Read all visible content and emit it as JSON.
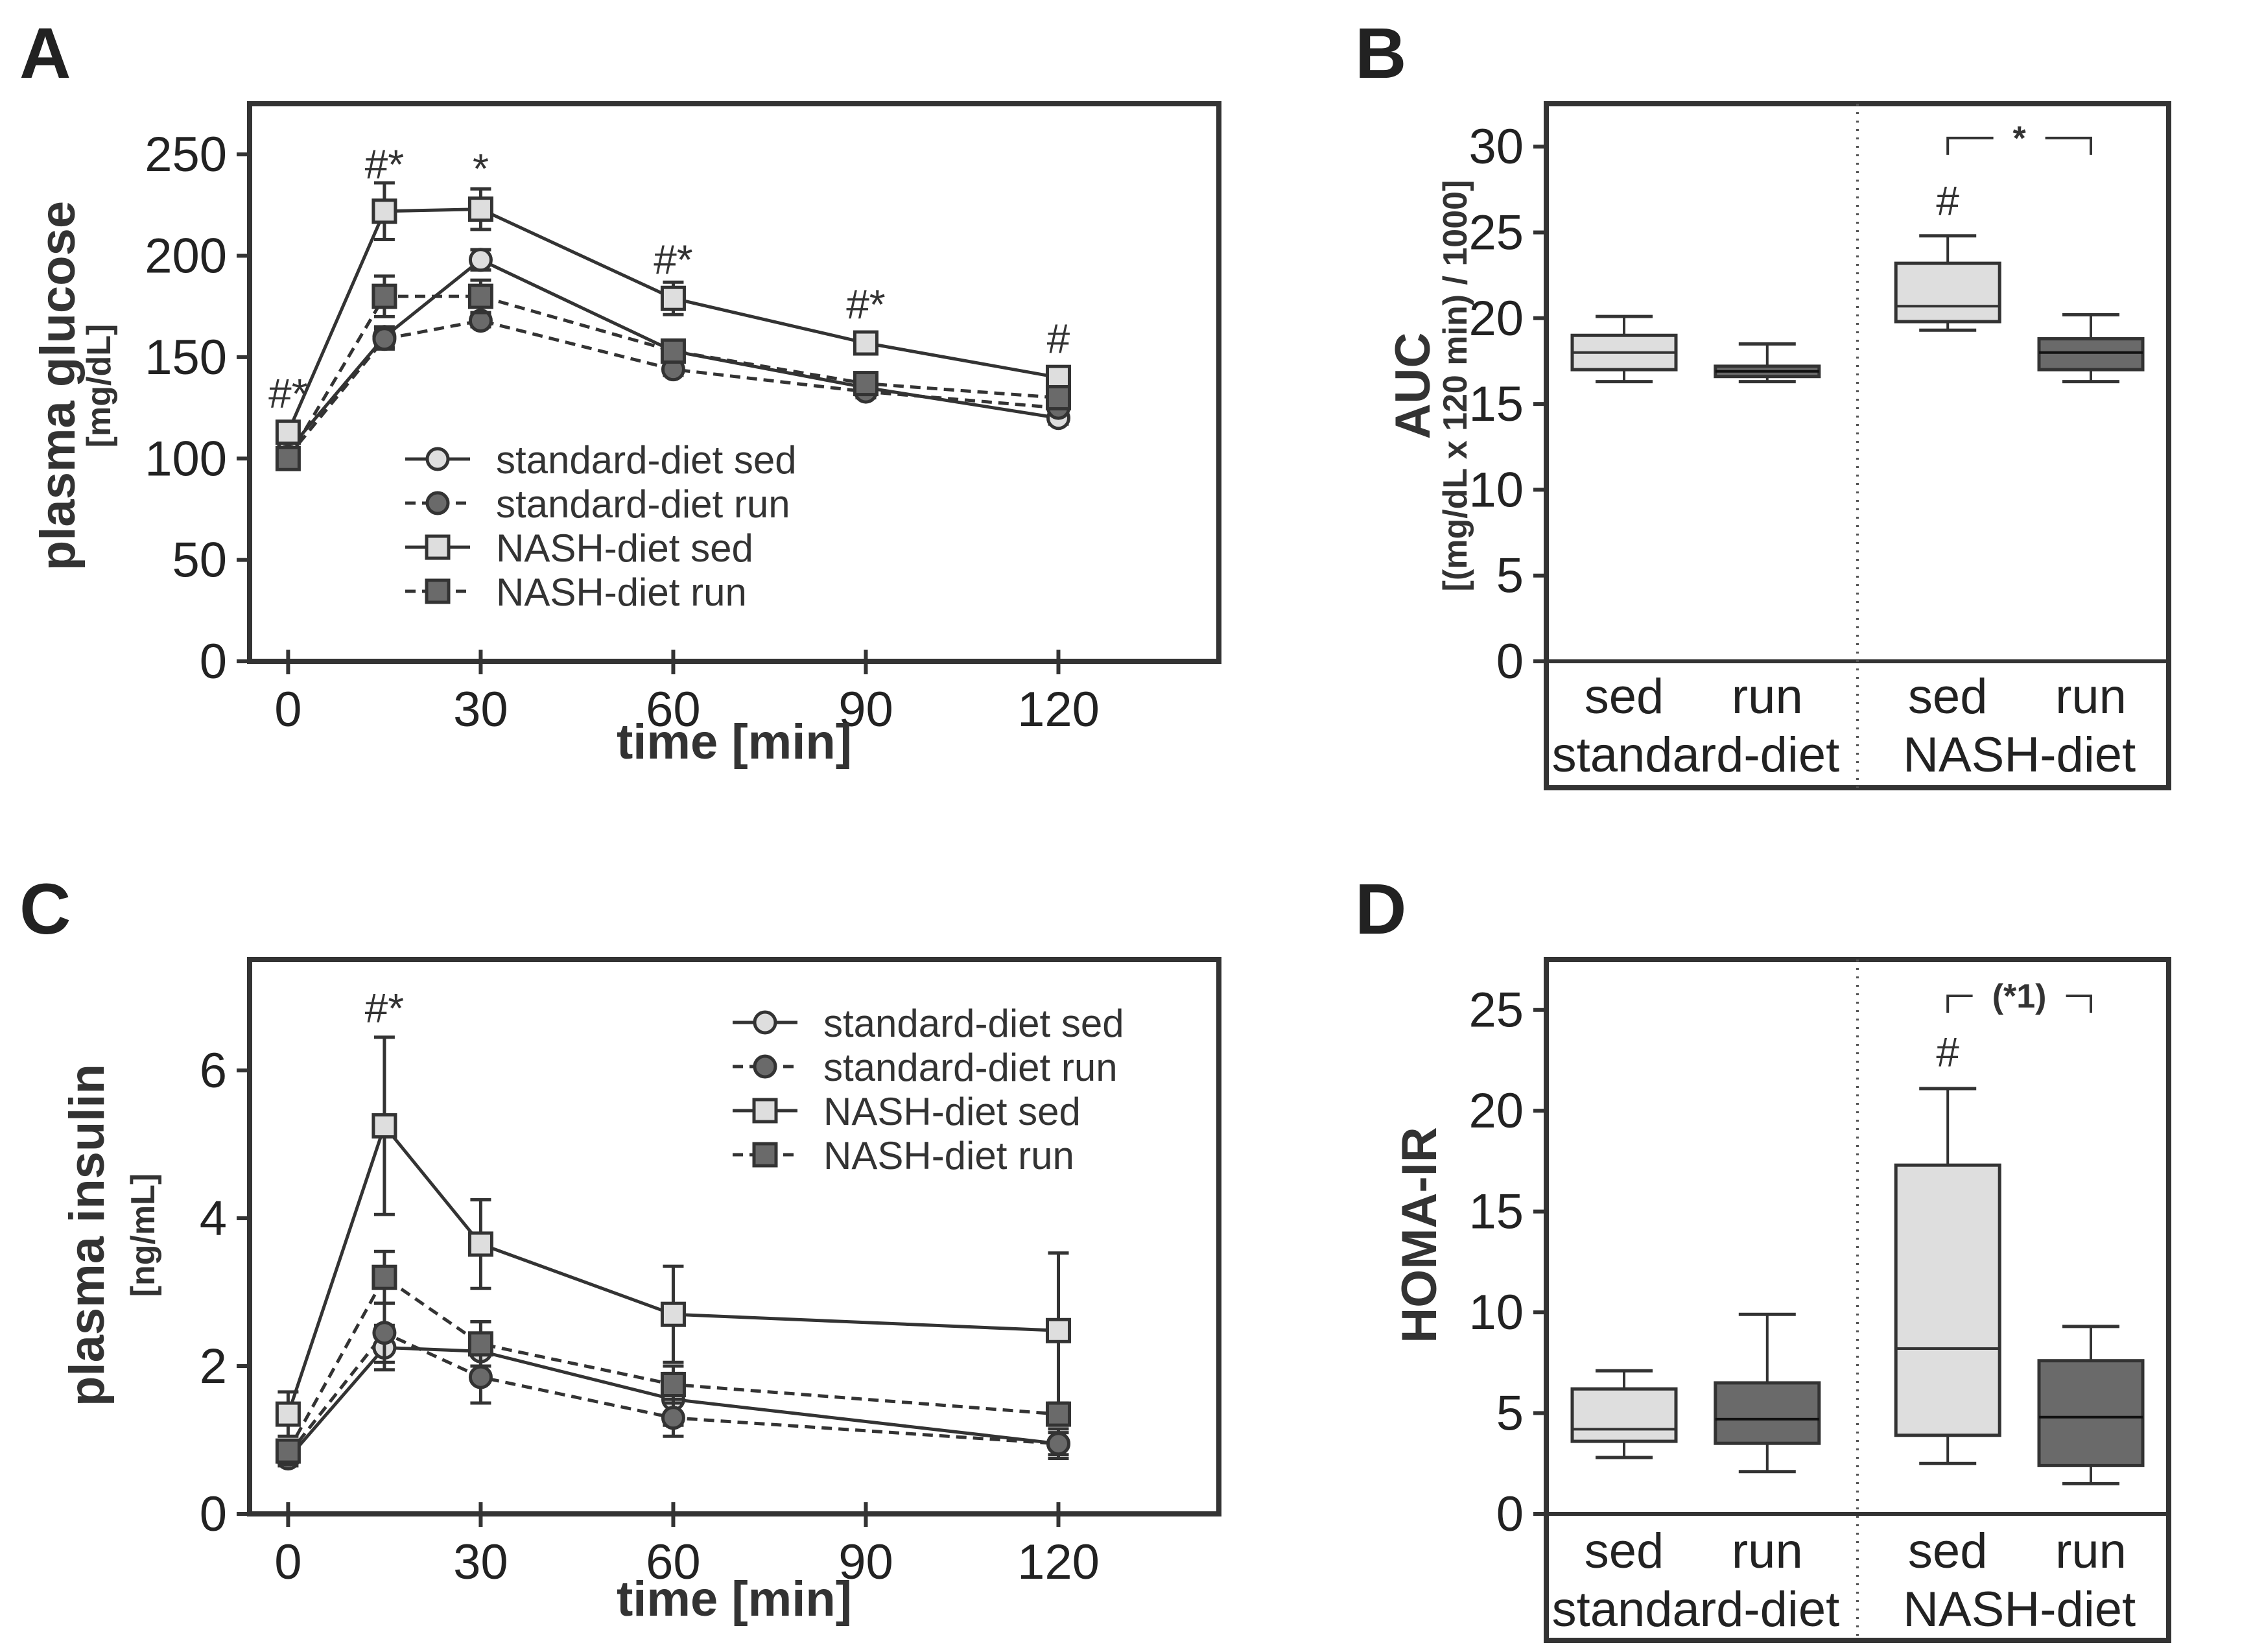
{
  "chart_data": [
    {
      "panel": "A",
      "type": "line",
      "xlabel": "time [min]",
      "ylabel": "plasma glucose",
      "yunit": "[mg/dL]",
      "xlim": [
        -6,
        145
      ],
      "ylim": [
        0,
        275
      ],
      "xticks": [
        0,
        30,
        60,
        90,
        120
      ],
      "yticks": [
        0,
        50,
        100,
        150,
        200,
        250
      ],
      "series": [
        {
          "name": "standard-diet sed",
          "style": "solid",
          "marker": "circle",
          "fill": "#dedede",
          "x": [
            0,
            15,
            30,
            60,
            90,
            120
          ],
          "y": [
            104,
            160,
            198,
            153,
            135,
            120
          ],
          "err": [
            3,
            5,
            5,
            4,
            3,
            3
          ]
        },
        {
          "name": "standard-diet run",
          "style": "dashed",
          "marker": "circle",
          "fill": "#6a6a6a",
          "x": [
            0,
            15,
            30,
            60,
            90,
            120
          ],
          "y": [
            101,
            159,
            168,
            144,
            133,
            125
          ],
          "err": [
            3,
            5,
            3,
            3,
            3,
            3
          ]
        },
        {
          "name": "NASH-diet sed",
          "style": "solid",
          "marker": "square",
          "fill": "#dedede",
          "x": [
            0,
            15,
            30,
            60,
            90,
            120
          ],
          "y": [
            113,
            222,
            223,
            179,
            157,
            140
          ],
          "err": [
            4,
            14,
            10,
            8,
            4,
            4
          ]
        },
        {
          "name": "NASH-diet run",
          "style": "dashed",
          "marker": "square",
          "fill": "#6a6a6a",
          "x": [
            0,
            15,
            30,
            60,
            90,
            120
          ],
          "y": [
            100,
            180,
            180,
            153,
            137,
            130
          ],
          "err": [
            3,
            10,
            8,
            4,
            3,
            3
          ]
        }
      ],
      "annotations": [
        {
          "x": 0,
          "y": 125,
          "text": "#*"
        },
        {
          "x": 15,
          "y": 238,
          "text": "#*"
        },
        {
          "x": 30,
          "y": 236,
          "text": "*"
        },
        {
          "x": 60,
          "y": 191,
          "text": "#*"
        },
        {
          "x": 90,
          "y": 169,
          "text": "#*"
        },
        {
          "x": 120,
          "y": 152,
          "text": "#"
        }
      ],
      "legend": "center"
    },
    {
      "panel": "B",
      "type": "box",
      "ylabel": "AUC",
      "yunit": "[(mg/dL x 120 min) / 1000]",
      "ylim": [
        0,
        32.5
      ],
      "yticks": [
        0,
        5,
        10,
        15,
        20,
        25,
        30
      ],
      "groups": [
        {
          "group": "standard-diet",
          "label": "sed",
          "fill": "#dedede",
          "whisker_low": 16.3,
          "q1": 17.0,
          "median": 18.0,
          "q3": 19.0,
          "whisker_high": 20.1
        },
        {
          "group": "standard-diet",
          "label": "run",
          "fill": "#6a6a6a",
          "whisker_low": 16.3,
          "q1": 16.6,
          "median": 16.9,
          "q3": 17.2,
          "whisker_high": 18.5
        },
        {
          "group": "NASH-diet",
          "label": "sed",
          "fill": "#dedede",
          "whisker_low": 19.3,
          "q1": 19.8,
          "median": 20.7,
          "q3": 23.2,
          "whisker_high": 24.8
        },
        {
          "group": "NASH-diet",
          "label": "run",
          "fill": "#6a6a6a",
          "whisker_low": 16.3,
          "q1": 17.0,
          "median": 18.0,
          "q3": 18.8,
          "whisker_high": 20.2
        }
      ],
      "group_labels": [
        "standard-diet",
        "NASH-diet"
      ],
      "annotations": [
        {
          "on": 2,
          "y": 26,
          "text": "#"
        }
      ],
      "bracket": {
        "from": 2,
        "to": 3,
        "y": 30.5,
        "text": "*"
      }
    },
    {
      "panel": "C",
      "type": "line",
      "xlabel": "time [min]",
      "ylabel": "plasma insulin",
      "yunit": "[ng/mL]",
      "xlim": [
        -6,
        145
      ],
      "ylim": [
        0,
        7.5
      ],
      "xticks": [
        0,
        30,
        60,
        90,
        120
      ],
      "yticks": [
        0,
        2,
        4,
        6
      ],
      "series": [
        {
          "name": "standard-diet sed",
          "style": "solid",
          "marker": "circle",
          "fill": "#dedede",
          "x": [
            0,
            15,
            30,
            60,
            120
          ],
          "y": [
            0.75,
            2.25,
            2.2,
            1.55,
            0.95
          ],
          "err": [
            0.1,
            0.3,
            0.4,
            0.35,
            0.2
          ]
        },
        {
          "name": "standard-diet run",
          "style": "dashed",
          "marker": "circle",
          "fill": "#6a6a6a",
          "x": [
            0,
            15,
            30,
            60,
            120
          ],
          "y": [
            0.8,
            2.45,
            1.85,
            1.3,
            0.95
          ],
          "err": [
            0.1,
            0.4,
            0.35,
            0.25,
            0.15
          ]
        },
        {
          "name": "NASH-diet sed",
          "style": "solid",
          "marker": "square",
          "fill": "#dedede",
          "x": [
            0,
            15,
            30,
            60,
            120
          ],
          "y": [
            1.35,
            5.25,
            3.65,
            2.7,
            2.48
          ],
          "err": [
            0.3,
            1.2,
            0.6,
            0.65,
            1.05
          ]
        },
        {
          "name": "NASH-diet run",
          "style": "dashed",
          "marker": "square",
          "fill": "#6a6a6a",
          "x": [
            0,
            15,
            30,
            60,
            120
          ],
          "y": [
            0.85,
            3.2,
            2.3,
            1.75,
            1.35
          ],
          "err": [
            0.1,
            0.35,
            0.3,
            0.25,
            0.15
          ]
        }
      ],
      "annotations": [
        {
          "x": 15,
          "y": 6.65,
          "text": "#*"
        }
      ],
      "legend": "top-right"
    },
    {
      "panel": "D",
      "type": "box",
      "ylabel": "HOMA-IR",
      "ylim": [
        0,
        27.5
      ],
      "yticks": [
        0,
        5,
        10,
        15,
        20,
        25
      ],
      "groups": [
        {
          "group": "standard-diet",
          "label": "sed",
          "fill": "#dedede",
          "whisker_low": 2.8,
          "q1": 3.6,
          "median": 4.2,
          "q3": 6.2,
          "whisker_high": 7.1
        },
        {
          "group": "standard-diet",
          "label": "run",
          "fill": "#6a6a6a",
          "whisker_low": 2.1,
          "q1": 3.5,
          "median": 4.7,
          "q3": 6.5,
          "whisker_high": 9.9
        },
        {
          "group": "NASH-diet",
          "label": "sed",
          "fill": "#dedede",
          "whisker_low": 2.5,
          "q1": 3.9,
          "median": 8.2,
          "q3": 17.3,
          "whisker_high": 21.1
        },
        {
          "group": "NASH-diet",
          "label": "run",
          "fill": "#6a6a6a",
          "whisker_low": 1.5,
          "q1": 2.4,
          "median": 4.8,
          "q3": 7.6,
          "whisker_high": 9.3
        }
      ],
      "group_labels": [
        "standard-diet",
        "NASH-diet"
      ],
      "annotations": [
        {
          "on": 2,
          "y": 22.2,
          "text": "#"
        }
      ],
      "bracket": {
        "from": 2,
        "to": 3,
        "y": 25.7,
        "text": "(*1)"
      }
    }
  ]
}
